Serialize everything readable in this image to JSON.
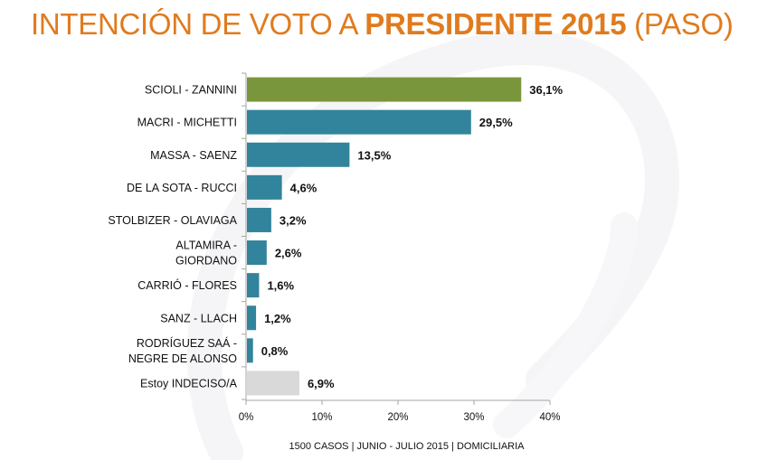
{
  "title": {
    "part1": "INTENCIÓN DE VOTO A ",
    "part2_bold": "PRESIDENTE 2015",
    "part3": " (PASO)"
  },
  "colors": {
    "title": "#e07b1e",
    "leader": "#7a963c",
    "candidate": "#31849b",
    "undecided": "#d9d9d9",
    "axis": "#a6a6a6"
  },
  "chart_data": {
    "type": "bar",
    "orientation": "horizontal",
    "title": "INTENCIÓN DE VOTO A PRESIDENTE 2015 (PASO)",
    "xlabel": "",
    "ylabel": "",
    "xlim": [
      0,
      40
    ],
    "xticks": [
      0,
      10,
      20,
      30,
      40
    ],
    "xtick_labels": [
      "0%",
      "10%",
      "20%",
      "30%",
      "40%"
    ],
    "grid": false,
    "legend": "none",
    "categories": [
      [
        "SCIOLI - ZANNINI"
      ],
      [
        "MACRI - MICHETTI"
      ],
      [
        "MASSA - SAENZ"
      ],
      [
        "DE LA SOTA - RUCCI"
      ],
      [
        "STOLBIZER - OLAVIAGA"
      ],
      [
        "ALTAMIRA -",
        "GIORDANO"
      ],
      [
        "CARRIÓ - FLORES"
      ],
      [
        "SANZ - LLACH"
      ],
      [
        "RODRÍGUEZ SAÁ -",
        "NEGRE DE ALONSO"
      ],
      [
        "Estoy INDECISO/A"
      ]
    ],
    "values": [
      36.1,
      29.5,
      13.5,
      4.6,
      3.2,
      2.6,
      1.6,
      1.2,
      0.8,
      6.9
    ],
    "value_labels": [
      "36,1%",
      "29,5%",
      "13,5%",
      "4,6%",
      "3,2%",
      "2,6%",
      "1,6%",
      "1,2%",
      "0,8%",
      "6,9%"
    ],
    "bar_kinds": [
      "leader",
      "candidate",
      "candidate",
      "candidate",
      "candidate",
      "candidate",
      "candidate",
      "candidate",
      "candidate",
      "undecided"
    ]
  },
  "footer": "1500 CASOS | JUNIO - JULIO 2015 | DOMICILIARIA"
}
